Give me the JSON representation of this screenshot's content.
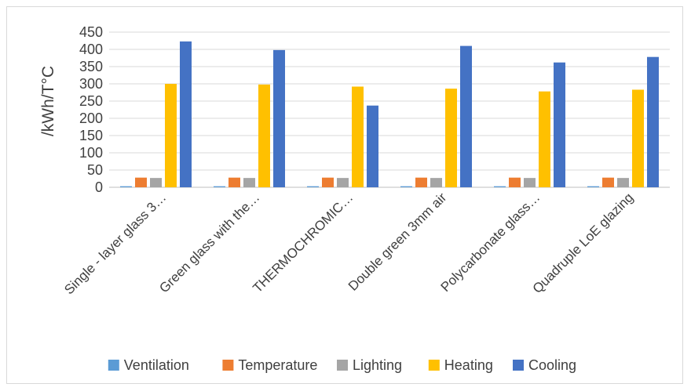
{
  "chart_data": {
    "type": "bar",
    "title": "",
    "xlabel": "",
    "ylabel": "/kWh/T°C",
    "ylim": [
      0,
      450
    ],
    "yticks": [
      0,
      50,
      100,
      150,
      200,
      250,
      300,
      350,
      400,
      450
    ],
    "grid": true,
    "legend": "bottom",
    "categories": [
      "Single - layer glass 3…",
      "Green glass with the…",
      "THERMOCHROMIC…",
      "Double green 3mm air",
      "Polycarbonate glass…",
      "Quadruple LoE glazing"
    ],
    "series": [
      {
        "name": "Ventilation",
        "color": "#5b9bd5",
        "values": [
          3,
          3,
          3,
          3,
          3,
          3
        ]
      },
      {
        "name": "Temperature",
        "color": "#ed7d31",
        "values": [
          28,
          28,
          28,
          28,
          28,
          28
        ]
      },
      {
        "name": "Lighting",
        "color": "#a5a5a5",
        "values": [
          27,
          27,
          27,
          27,
          27,
          27
        ]
      },
      {
        "name": "Heating",
        "color": "#ffc000",
        "values": [
          300,
          298,
          292,
          286,
          278,
          283
        ]
      },
      {
        "name": "Cooling",
        "color": "#4472c4",
        "values": [
          423,
          398,
          237,
          410,
          362,
          378
        ]
      }
    ]
  }
}
